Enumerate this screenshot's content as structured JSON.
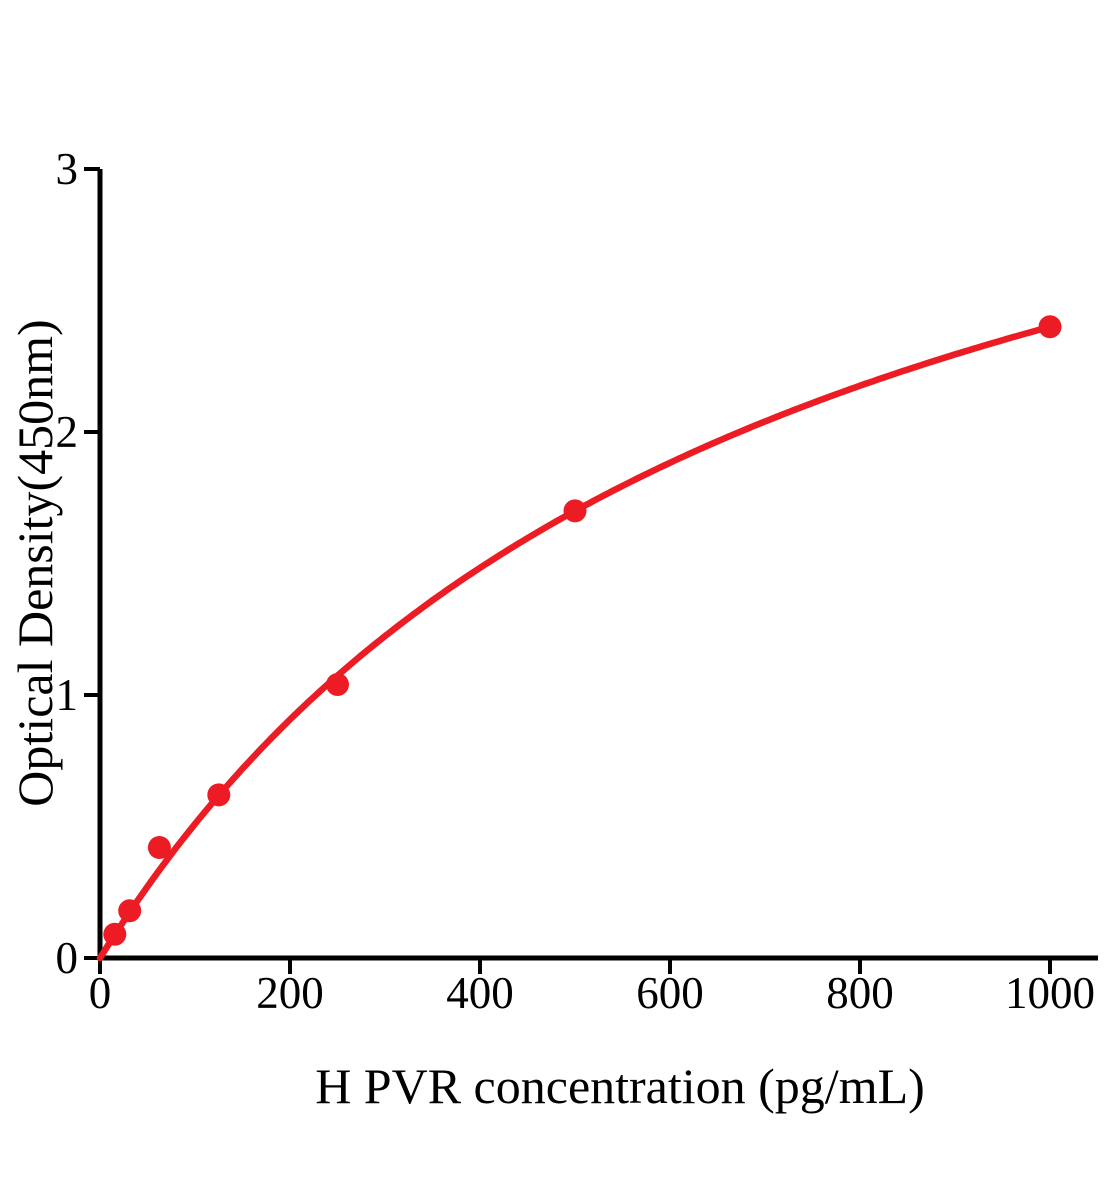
{
  "chart_data": {
    "type": "scatter",
    "title": "",
    "xlabel": "H PVR concentration (pg/mL)",
    "ylabel": "Optical Density(450nm)",
    "x": [
      15.6,
      31.3,
      62.5,
      125,
      250,
      500,
      1000
    ],
    "y": [
      0.09,
      0.18,
      0.42,
      0.62,
      1.04,
      1.7,
      2.4
    ],
    "xticks": [
      0,
      200,
      400,
      600,
      800,
      1000
    ],
    "yticks": [
      0,
      1,
      2,
      3
    ],
    "xlim": [
      0,
      1050
    ],
    "ylim": [
      0,
      3
    ],
    "grid": false,
    "legend": null,
    "series_color": "#ed1c24",
    "axis_color": "#000000",
    "fit_curve": {
      "model": "michaelis_menten",
      "vmax": 4.08,
      "km": 700,
      "x_start": 0,
      "x_end": 1000
    }
  }
}
